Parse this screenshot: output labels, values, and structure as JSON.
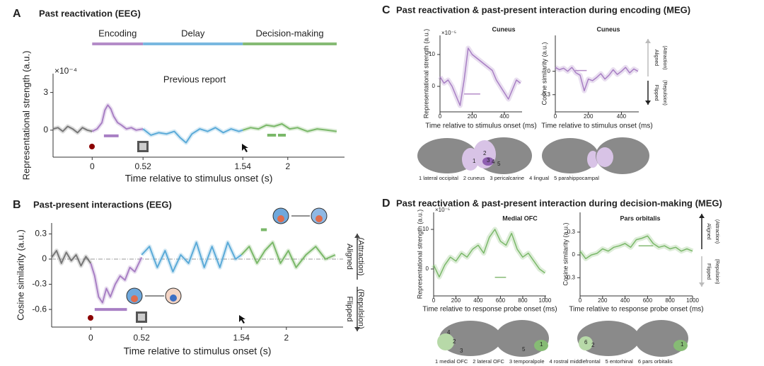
{
  "chart_data": [
    {
      "type": "line",
      "panel": "A",
      "title": "Past reactivation (EEG)",
      "subtitle": "Previous report",
      "xlabel": "Time relative to stimulus onset (s)",
      "ylabel": "Representational strength (a.u.)",
      "y_exponent": "×10⁻⁴",
      "xlim": [
        -0.4,
        2.58
      ],
      "xticks": [
        0,
        0.52,
        1.54,
        2
      ],
      "ylim": [
        -2.15,
        4.5
      ],
      "yticks": [
        0,
        3
      ],
      "phases": [
        {
          "name": "Encoding",
          "color": "#b48cc8",
          "range": [
            0,
            0.52
          ]
        },
        {
          "name": "Delay",
          "color": "#79b8e0",
          "range": [
            0.52,
            1.54
          ]
        },
        {
          "name": "Decision-making",
          "color": "#86bb74",
          "range": [
            1.54,
            2.5
          ]
        }
      ],
      "series": [
        {
          "color": "#777777",
          "x": [
            -0.4,
            -0.35,
            -0.3,
            -0.25,
            -0.2,
            -0.15,
            -0.1,
            -0.05,
            0
          ],
          "values": [
            0.1,
            0.2,
            -0.1,
            0.3,
            0.1,
            -0.2,
            0.2,
            0,
            -0.1
          ]
        },
        {
          "color": "#a87fc4",
          "x": [
            0,
            0.05,
            0.1,
            0.13,
            0.16,
            0.19,
            0.22,
            0.26,
            0.3,
            0.35,
            0.4,
            0.45,
            0.52
          ],
          "values": [
            -0.1,
            0.1,
            0.6,
            1.6,
            2.0,
            1.7,
            1.1,
            0.6,
            0.4,
            0.1,
            0.2,
            0,
            0.1
          ]
        },
        {
          "color": "#5aaad8",
          "x": [
            0.52,
            0.6,
            0.68,
            0.76,
            0.84,
            0.9,
            0.96,
            1.02,
            1.1,
            1.18,
            1.26,
            1.34,
            1.42,
            1.5,
            1.54
          ],
          "values": [
            0.1,
            -0.4,
            -0.2,
            -0.3,
            -0.1,
            -0.6,
            -1.0,
            -0.3,
            0.1,
            -0.1,
            0.2,
            -0.2,
            0.1,
            -0.1,
            0
          ]
        },
        {
          "color": "#7ab869",
          "x": [
            1.54,
            1.62,
            1.7,
            1.78,
            1.86,
            1.94,
            2.02,
            2.1,
            2.2,
            2.3,
            2.4,
            2.5
          ],
          "values": [
            0,
            0.2,
            0.1,
            0.4,
            0.3,
            0.5,
            0.1,
            0.2,
            -0.1,
            0.1,
            0,
            -0.1
          ]
        }
      ],
      "significance": [
        {
          "color": "#a87fc4",
          "range": [
            0.12,
            0.27
          ],
          "y": -0.45
        },
        {
          "color": "#7ab869",
          "range": [
            1.79,
            1.88
          ],
          "y": -0.4
        },
        {
          "color": "#7ab869",
          "range": [
            1.9,
            1.98
          ],
          "y": -0.4
        }
      ]
    },
    {
      "type": "line",
      "panel": "B",
      "title": "Past-present interactions (EEG)",
      "xlabel": "Time relative to stimulus onset (s)",
      "ylabel": "Cosine similarity (a.u.)",
      "zero_line": true,
      "xlim": [
        -0.4,
        2.58
      ],
      "xticks": [
        0,
        0.52,
        1.54,
        2
      ],
      "ylim": [
        -0.81,
        0.43
      ],
      "yticks": [
        -0.6,
        -0.3,
        0,
        0.3
      ],
      "annotations": {
        "aligned": {
          "text": [
            "Aligned",
            "(Attraction)"
          ],
          "color": "#444444"
        },
        "flipped": {
          "text": [
            "Flipped",
            "(Repulsion)"
          ],
          "color": "#444444"
        }
      },
      "series": [
        {
          "color": "#777777",
          "x": [
            -0.4,
            -0.35,
            -0.3,
            -0.25,
            -0.2,
            -0.15,
            -0.1,
            -0.05,
            0
          ],
          "values": [
            0.02,
            0.1,
            -0.05,
            0.08,
            -0.02,
            0.05,
            -0.08,
            0.03,
            -0.05
          ]
        },
        {
          "color": "#a87fc4",
          "x": [
            0,
            0.04,
            0.08,
            0.12,
            0.16,
            0.2,
            0.25,
            0.3,
            0.35,
            0.4,
            0.45,
            0.52
          ],
          "values": [
            -0.05,
            -0.2,
            -0.45,
            -0.52,
            -0.35,
            -0.45,
            -0.3,
            -0.2,
            -0.25,
            -0.1,
            -0.15,
            0.02
          ]
        },
        {
          "color": "#5aaad8",
          "x": [
            0.52,
            0.6,
            0.68,
            0.76,
            0.84,
            0.92,
            1.0,
            1.08,
            1.16,
            1.24,
            1.32,
            1.4,
            1.48,
            1.54
          ],
          "values": [
            0.05,
            0.15,
            -0.1,
            0.1,
            -0.15,
            0.05,
            -0.05,
            0.2,
            -0.1,
            0.15,
            -0.1,
            0.2,
            0,
            0.05
          ]
        },
        {
          "color": "#7ab869",
          "x": [
            1.54,
            1.62,
            1.7,
            1.78,
            1.86,
            1.94,
            2.02,
            2.1,
            2.2,
            2.3,
            2.4,
            2.5
          ],
          "values": [
            0.05,
            0.15,
            -0.05,
            0.1,
            0.2,
            -0.05,
            0.1,
            -0.1,
            0.05,
            0.15,
            0,
            0.05
          ]
        }
      ],
      "significance": [
        {
          "color": "#a87fc4",
          "range": [
            0.04,
            0.37
          ],
          "y": -0.6
        },
        {
          "color": "#7ab869",
          "range": [
            1.74,
            1.8
          ],
          "y": 0.35
        }
      ]
    },
    {
      "type": "line",
      "panel": "C",
      "title": "Past reactivation & past-present interaction during encoding (MEG)",
      "subtitle": "Cuneus",
      "subtitle_color": "#b48cc8",
      "xlabel": "Time relative to stimulus onset (ms)",
      "ylabel": "Representational strength (a.u.)",
      "y_exponent": "×10⁻⁵",
      "xlim": [
        0,
        510
      ],
      "xticks": [
        0,
        200,
        400
      ],
      "ylim": [
        -8,
        16
      ],
      "yticks": [
        0,
        10
      ],
      "series": [
        {
          "color": "#a87fc4",
          "x": [
            0,
            25,
            50,
            75,
            100,
            125,
            150,
            175,
            200,
            225,
            250,
            275,
            300,
            325,
            350,
            375,
            400,
            425,
            450,
            475,
            500
          ],
          "values": [
            3,
            1,
            2,
            0,
            -3,
            -6,
            2,
            12,
            10,
            9,
            8,
            7,
            6,
            5,
            2,
            0,
            -2,
            -4,
            -1,
            2,
            1
          ]
        }
      ],
      "significance": [
        {
          "color": "#b48cc8",
          "range": [
            150,
            250
          ],
          "y": -2.4
        }
      ],
      "brain_numbers": [
        "1",
        "2",
        "3",
        "4",
        "5"
      ],
      "regions": [
        "1 lateral occipital",
        "2 cuneus",
        "3 pericalcarine",
        "4 lingual",
        "5 parahippocampal"
      ]
    },
    {
      "type": "line",
      "subtitle": "Cuneus",
      "subtitle_color": "#b48cc8",
      "xlabel": "Time relative to stimulus onset (ms)",
      "ylabel": "Cosine similarity (a.u.)",
      "xlim": [
        0,
        505
      ],
      "xticks": [
        0,
        200,
        400
      ],
      "ylim": [
        -0.52,
        0.46
      ],
      "yticks": [
        -0.3,
        0
      ],
      "annotations": {
        "aligned": {
          "text": [
            "Aligned",
            "(Attraction)"
          ],
          "color": "#bbbbbb"
        },
        "flipped": {
          "text": [
            "Flipped",
            "(Repulsion)"
          ],
          "color": "#222222"
        }
      },
      "series": [
        {
          "color": "#a87fc4",
          "x": [
            0,
            25,
            50,
            75,
            100,
            125,
            150,
            175,
            200,
            225,
            250,
            275,
            300,
            325,
            350,
            375,
            400,
            425,
            450,
            475,
            500
          ],
          "values": [
            0.05,
            0.02,
            0.04,
            0,
            0.05,
            -0.02,
            -0.05,
            -0.25,
            -0.1,
            -0.12,
            -0.08,
            -0.03,
            -0.1,
            -0.05,
            0.02,
            -0.04,
            0,
            0.05,
            -0.02,
            0.03,
            0
          ]
        }
      ],
      "significance": [
        {
          "color": "#b48cc8",
          "range": [
            120,
            190
          ],
          "y": 0.01
        }
      ]
    },
    {
      "type": "line",
      "panel": "D",
      "title": "Past reactivation & past-present interaction during decision-making (MEG)",
      "subtitle": "Medial OFC",
      "subtitle_color": "#86bb74",
      "xlabel": "Time relative to response probe onset (ms)",
      "ylabel": "Representational strength (a.u.)",
      "y_exponent": "×10⁻⁵",
      "xlim": [
        0,
        1010
      ],
      "xticks": [
        0,
        200,
        400,
        600,
        800,
        1000
      ],
      "ylim": [
        -6.8,
        14.3
      ],
      "yticks": [
        0,
        10
      ],
      "series": [
        {
          "color": "#7ab869",
          "x": [
            0,
            50,
            100,
            150,
            200,
            250,
            300,
            350,
            400,
            450,
            500,
            550,
            600,
            650,
            700,
            750,
            800,
            850,
            900,
            950,
            1000
          ],
          "values": [
            1,
            -2,
            1,
            3,
            2,
            4,
            3,
            5,
            6,
            4,
            8,
            10,
            7,
            6,
            9,
            5,
            3,
            4,
            2,
            0,
            -1
          ]
        }
      ],
      "significance": [
        {
          "color": "#86bb74",
          "range": [
            550,
            650
          ],
          "y": -2.1
        }
      ],
      "brain_numbers": [
        "4",
        "2",
        "3",
        "5",
        "1",
        "6",
        "2",
        "1"
      ],
      "regions": [
        "1 medial OFC",
        "2 lateral OFC",
        "3 temporalpole",
        "4 rostral middlefrontal",
        "5 entorhinal",
        "6 pars orbitalis"
      ]
    },
    {
      "type": "line",
      "subtitle": "Pars orbitalis",
      "subtitle_color": "#86bb74",
      "xlabel": "Time relative to response probe onset (ms)",
      "ylabel": "Cosine similarity (a.u.)",
      "xlim": [
        0,
        1000
      ],
      "xticks": [
        0,
        200,
        400,
        600,
        800,
        1000
      ],
      "ylim": [
        -0.54,
        0.56
      ],
      "yticks": [
        -0.3,
        0,
        0.3
      ],
      "annotations": {
        "aligned": {
          "text": [
            "Aligned",
            "(Attraction)"
          ],
          "color": "#222222"
        },
        "flipped": {
          "text": [
            "Flipped",
            "(Repulsion)"
          ],
          "color": "#bbbbbb"
        }
      },
      "series": [
        {
          "color": "#7ab869",
          "x": [
            0,
            50,
            100,
            150,
            200,
            250,
            300,
            350,
            400,
            450,
            500,
            550,
            600,
            650,
            700,
            750,
            800,
            850,
            900,
            950,
            1000
          ],
          "values": [
            0.05,
            -0.05,
            0,
            0.02,
            0.08,
            0.05,
            0.1,
            0.12,
            0.15,
            0.1,
            0.2,
            0.22,
            0.25,
            0.15,
            0.1,
            0.12,
            0.08,
            0.1,
            0.05,
            0.08,
            0.05
          ]
        }
      ],
      "significance": [
        {
          "color": "#86bb74",
          "range": [
            520,
            650
          ],
          "y": 0.12
        }
      ]
    }
  ]
}
